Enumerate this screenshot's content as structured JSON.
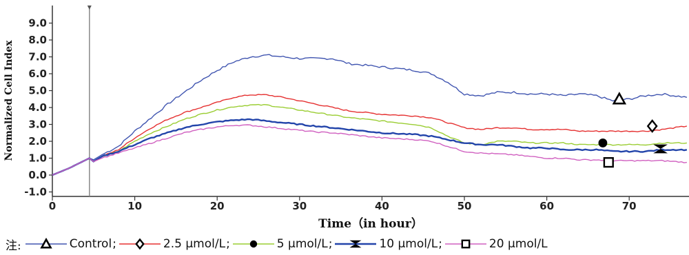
{
  "chart_data": {
    "type": "line",
    "title": "",
    "xlabel": "Time（in hour）",
    "ylabel": "Normalized Cell Index",
    "xlim": [
      0,
      77
    ],
    "ylim": [
      -1.0,
      9.0
    ],
    "x_ticks": [
      "0",
      "10",
      "20",
      "30",
      "40",
      "50",
      "60",
      "70"
    ],
    "y_ticks": [
      "-1.0",
      "0.0",
      "1.0",
      "2.0",
      "3.0",
      "4.0",
      "5.0",
      "6.0",
      "7.0",
      "8.0",
      "9.0"
    ],
    "vertical_marker_x": 4.5,
    "grid": false,
    "legend_position": "bottom",
    "series": [
      {
        "name": "Control",
        "color": "#4055b0",
        "marker": "triangle-open",
        "marker_point": [
          68.8,
          4.5
        ],
        "x": [
          0,
          2,
          4.5,
          5,
          6,
          8,
          10,
          12,
          14,
          16,
          18,
          20,
          22,
          24,
          26,
          28,
          30,
          32,
          34,
          36,
          38,
          40,
          42,
          44,
          46,
          48,
          50,
          52,
          54,
          56,
          58,
          60,
          62,
          64,
          66,
          68,
          70,
          72,
          74,
          77
        ],
        "y": [
          0.0,
          0.4,
          1.0,
          0.9,
          1.2,
          1.7,
          2.6,
          3.4,
          4.2,
          4.9,
          5.6,
          6.2,
          6.7,
          7.0,
          7.1,
          7.0,
          6.9,
          6.9,
          6.9,
          6.6,
          6.5,
          6.4,
          6.3,
          6.2,
          6.0,
          5.5,
          4.8,
          4.7,
          4.9,
          4.9,
          4.8,
          4.8,
          4.7,
          4.8,
          4.7,
          4.4,
          4.5,
          4.7,
          4.8,
          4.6
        ]
      },
      {
        "name": "2.5 μmol/L",
        "color": "#e53030",
        "marker": "diamond-open",
        "marker_point": [
          72.8,
          2.9
        ],
        "x": [
          0,
          2,
          4.5,
          5,
          6,
          8,
          10,
          12,
          14,
          16,
          18,
          20,
          22,
          24,
          26,
          28,
          30,
          32,
          34,
          36,
          38,
          40,
          42,
          44,
          46,
          48,
          50,
          52,
          54,
          56,
          58,
          60,
          62,
          64,
          66,
          68,
          70,
          72,
          74,
          77
        ],
        "y": [
          0.0,
          0.4,
          1.0,
          0.8,
          1.1,
          1.5,
          2.2,
          2.8,
          3.3,
          3.7,
          4.0,
          4.3,
          4.6,
          4.75,
          4.75,
          4.6,
          4.4,
          4.2,
          4.0,
          3.8,
          3.7,
          3.6,
          3.55,
          3.5,
          3.4,
          3.1,
          2.8,
          2.7,
          2.8,
          2.8,
          2.7,
          2.7,
          2.7,
          2.6,
          2.6,
          2.6,
          2.6,
          2.6,
          2.7,
          2.9
        ]
      },
      {
        "name": "5 μmol/L",
        "color": "#9acd32",
        "marker": "circle-filled",
        "marker_point": [
          66.8,
          1.9
        ],
        "x": [
          0,
          2,
          4.5,
          5,
          6,
          8,
          10,
          12,
          14,
          16,
          18,
          20,
          22,
          24,
          26,
          28,
          30,
          32,
          34,
          36,
          38,
          40,
          42,
          44,
          46,
          48,
          50,
          52,
          54,
          56,
          58,
          60,
          62,
          64,
          66,
          68,
          70,
          72,
          74,
          77
        ],
        "y": [
          0.0,
          0.4,
          1.0,
          0.8,
          1.1,
          1.4,
          2.0,
          2.5,
          2.9,
          3.3,
          3.6,
          3.85,
          4.05,
          4.15,
          4.15,
          4.0,
          3.85,
          3.7,
          3.55,
          3.4,
          3.3,
          3.2,
          3.1,
          3.0,
          2.8,
          2.3,
          1.9,
          1.8,
          2.0,
          2.0,
          1.9,
          1.9,
          1.9,
          1.8,
          1.8,
          1.8,
          1.8,
          1.8,
          1.9,
          1.9
        ]
      },
      {
        "name": "10 μmol/L",
        "color": "#2244aa",
        "marker": "bowtie",
        "marker_point": [
          73.8,
          1.55
        ],
        "x": [
          0,
          2,
          4.5,
          5,
          6,
          8,
          10,
          12,
          14,
          16,
          18,
          20,
          22,
          24,
          26,
          28,
          30,
          32,
          34,
          36,
          38,
          40,
          42,
          44,
          46,
          48,
          50,
          52,
          54,
          56,
          58,
          60,
          62,
          64,
          66,
          68,
          70,
          72,
          74,
          77
        ],
        "y": [
          0.0,
          0.4,
          1.0,
          0.8,
          1.1,
          1.4,
          1.8,
          2.2,
          2.5,
          2.8,
          3.0,
          3.15,
          3.25,
          3.3,
          3.2,
          3.1,
          3.0,
          2.9,
          2.8,
          2.7,
          2.6,
          2.5,
          2.45,
          2.4,
          2.3,
          2.1,
          1.9,
          1.8,
          1.8,
          1.7,
          1.6,
          1.6,
          1.5,
          1.5,
          1.5,
          1.4,
          1.4,
          1.4,
          1.5,
          1.5
        ]
      },
      {
        "name": "20 μmol/L",
        "color": "#d060c0",
        "marker": "square-open",
        "marker_point": [
          67.5,
          0.75
        ],
        "x": [
          0,
          2,
          4.5,
          5,
          6,
          8,
          10,
          12,
          14,
          16,
          18,
          20,
          22,
          24,
          26,
          28,
          30,
          32,
          34,
          36,
          38,
          40,
          42,
          44,
          46,
          48,
          50,
          52,
          54,
          56,
          58,
          60,
          62,
          64,
          66,
          68,
          70,
          72,
          74,
          77
        ],
        "y": [
          0.0,
          0.4,
          1.0,
          0.8,
          1.0,
          1.3,
          1.6,
          1.9,
          2.2,
          2.5,
          2.7,
          2.85,
          2.95,
          2.95,
          2.85,
          2.75,
          2.65,
          2.55,
          2.5,
          2.4,
          2.3,
          2.2,
          2.15,
          2.1,
          2.0,
          1.7,
          1.4,
          1.3,
          1.25,
          1.2,
          1.1,
          1.0,
          1.0,
          0.9,
          0.9,
          0.85,
          0.85,
          0.85,
          0.85,
          0.75
        ]
      }
    ]
  },
  "legend": {
    "note": "注:",
    "separator": ";"
  }
}
